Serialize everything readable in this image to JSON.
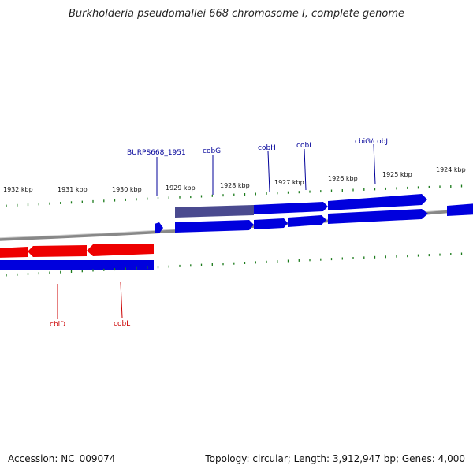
{
  "title": "Burkholderia pseudomallei 668 chromosome I, complete genome",
  "footer": {
    "accession": "Accession: NC_009074",
    "stats": "Topology: circular; Length: 3,912,947 bp; Genes: 4,000"
  },
  "colors": {
    "forward_gene": "#0000dd",
    "reverse_gene": "#ee0000",
    "highlight_gene": "#4a4a8f",
    "forward_label": "#000099",
    "reverse_label": "#cc0000",
    "ticks": "#1a7a1a",
    "backbone": "#888888"
  },
  "scale": {
    "unit": "kbp",
    "upper_ticks": [
      {
        "label": "1932 kbp"
      },
      {
        "label": "1931 kbp"
      },
      {
        "label": "1930 kbp"
      },
      {
        "label": "1929 kbp"
      },
      {
        "label": "1928 kbp"
      },
      {
        "label": "1927 kbp"
      },
      {
        "label": "1926 kbp"
      },
      {
        "label": "1925 kbp"
      },
      {
        "label": "1924 kbp"
      }
    ]
  },
  "labels": {
    "forward": [
      {
        "name": "BURPS668_1951"
      },
      {
        "name": "cobG"
      },
      {
        "name": "cobH"
      },
      {
        "name": "cobI"
      },
      {
        "name": "cbiG/cobJ"
      }
    ],
    "reverse": [
      {
        "name": "cbiD"
      },
      {
        "name": "cobL"
      }
    ]
  }
}
